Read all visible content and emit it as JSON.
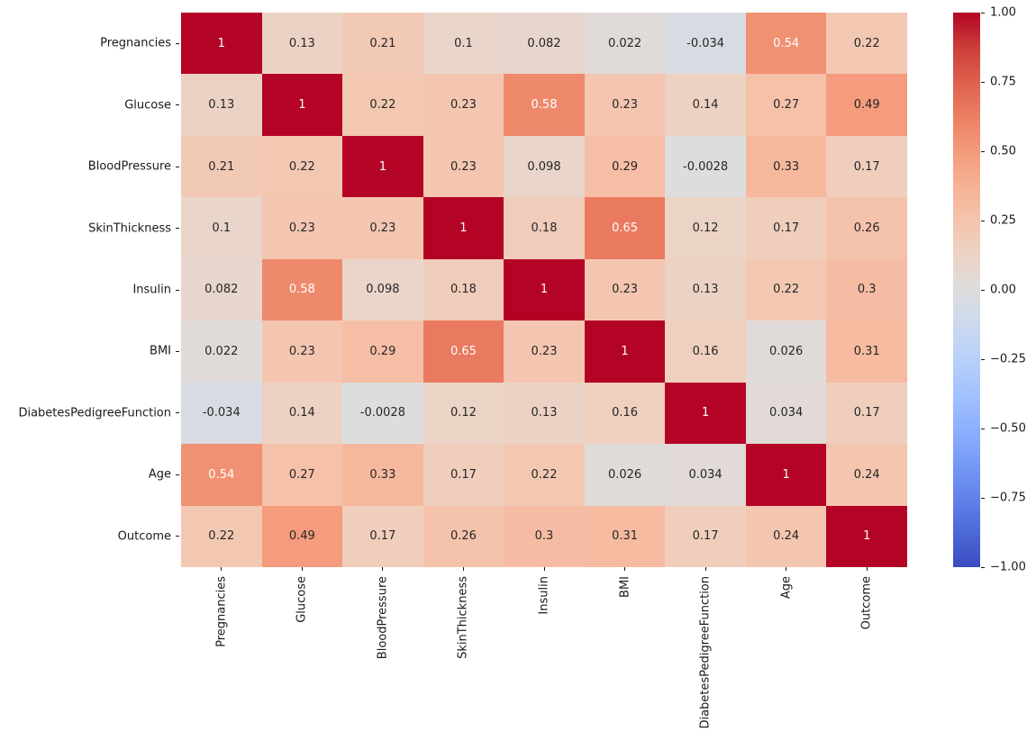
{
  "chart_data": {
    "type": "heatmap",
    "title": "",
    "xlabel": "",
    "ylabel": "",
    "x_categories": [
      "Pregnancies",
      "Glucose",
      "BloodPressure",
      "SkinThickness",
      "Insulin",
      "BMI",
      "DiabetesPedigreeFunction",
      "Age",
      "Outcome"
    ],
    "y_categories": [
      "Pregnancies",
      "Glucose",
      "BloodPressure",
      "SkinThickness",
      "Insulin",
      "BMI",
      "DiabetesPedigreeFunction",
      "Age",
      "Outcome"
    ],
    "matrix": [
      [
        1,
        0.13,
        0.21,
        0.1,
        0.082,
        0.022,
        -0.034,
        0.54,
        0.22
      ],
      [
        0.13,
        1,
        0.22,
        0.23,
        0.58,
        0.23,
        0.14,
        0.27,
        0.49
      ],
      [
        0.21,
        0.22,
        1,
        0.23,
        0.098,
        0.29,
        -0.0028,
        0.33,
        0.17
      ],
      [
        0.1,
        0.23,
        0.23,
        1,
        0.18,
        0.65,
        0.12,
        0.17,
        0.26
      ],
      [
        0.082,
        0.58,
        0.098,
        0.18,
        1,
        0.23,
        0.13,
        0.22,
        0.3
      ],
      [
        0.022,
        0.23,
        0.29,
        0.65,
        0.23,
        1,
        0.16,
        0.026,
        0.31
      ],
      [
        -0.034,
        0.14,
        -0.0028,
        0.12,
        0.13,
        0.16,
        1,
        0.034,
        0.17
      ],
      [
        0.54,
        0.27,
        0.33,
        0.17,
        0.22,
        0.026,
        0.034,
        1,
        0.24
      ],
      [
        0.22,
        0.49,
        0.17,
        0.26,
        0.3,
        0.31,
        0.17,
        0.24,
        1
      ]
    ],
    "cell_labels": [
      [
        "1",
        "0.13",
        "0.21",
        "0.1",
        "0.082",
        "0.022",
        "-0.034",
        "0.54",
        "0.22"
      ],
      [
        "0.13",
        "1",
        "0.22",
        "0.23",
        "0.58",
        "0.23",
        "0.14",
        "0.27",
        "0.49"
      ],
      [
        "0.21",
        "0.22",
        "1",
        "0.23",
        "0.098",
        "0.29",
        "-0.0028",
        "0.33",
        "0.17"
      ],
      [
        "0.1",
        "0.23",
        "0.23",
        "1",
        "0.18",
        "0.65",
        "0.12",
        "0.17",
        "0.26"
      ],
      [
        "0.082",
        "0.58",
        "0.098",
        "0.18",
        "1",
        "0.23",
        "0.13",
        "0.22",
        "0.3"
      ],
      [
        "0.022",
        "0.23",
        "0.29",
        "0.65",
        "0.23",
        "1",
        "0.16",
        "0.026",
        "0.31"
      ],
      [
        "-0.034",
        "0.14",
        "-0.0028",
        "0.12",
        "0.13",
        "0.16",
        "1",
        "0.034",
        "0.17"
      ],
      [
        "0.54",
        "0.27",
        "0.33",
        "0.17",
        "0.22",
        "0.026",
        "0.034",
        "1",
        "0.24"
      ],
      [
        "0.22",
        "0.49",
        "0.17",
        "0.26",
        "0.3",
        "0.31",
        "0.17",
        "0.24",
        "1"
      ]
    ],
    "vmin": -1,
    "vmax": 1,
    "grid": false,
    "legend_position": "right-colorbar",
    "colormap": {
      "name": "coolwarm",
      "rgb_stops": [
        [
          59,
          76,
          192
        ],
        [
          77,
          104,
          215
        ],
        [
          98,
          130,
          234
        ],
        [
          119,
          154,
          247
        ],
        [
          141,
          176,
          254
        ],
        [
          163,
          194,
          255
        ],
        [
          184,
          208,
          249
        ],
        [
          204,
          217,
          238
        ],
        [
          221,
          221,
          221
        ],
        [
          236,
          211,
          197
        ],
        [
          245,
          196,
          173
        ],
        [
          247,
          177,
          148
        ],
        [
          244,
          154,
          123
        ],
        [
          236,
          127,
          99
        ],
        [
          222,
          96,
          77
        ],
        [
          203,
          62,
          56
        ],
        [
          180,
          4,
          38
        ]
      ]
    },
    "colorbar": {
      "tick_labels": [
        "1.00",
        "0.75",
        "0.50",
        "0.25",
        "0.00",
        "−0.25",
        "−0.50",
        "−0.75",
        "−1.00"
      ],
      "tick_values": [
        1,
        0.75,
        0.5,
        0.25,
        0,
        -0.25,
        -0.5,
        -0.75,
        -1
      ]
    },
    "annotation_colors": {
      "dark": "#262626",
      "light": "#ffffff"
    }
  }
}
